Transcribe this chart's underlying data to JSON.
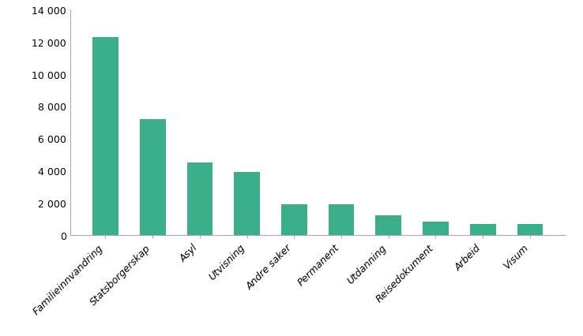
{
  "categories": [
    "Familieinnvandring",
    "Statsborgerskap",
    "Asyl",
    "Utvisning",
    "Andre saker",
    "Permanent",
    "Utdanning",
    "Reisedokument",
    "Arbeid",
    "Visum"
  ],
  "values": [
    12300,
    7200,
    4500,
    3900,
    1900,
    1900,
    1200,
    830,
    690,
    660
  ],
  "bar_color": "#3aad8a",
  "background_color": "#ffffff",
  "ylim": [
    0,
    14000
  ],
  "yticks": [
    0,
    2000,
    4000,
    6000,
    8000,
    10000,
    12000,
    14000
  ],
  "spine_color": "#aaaaaa",
  "tick_fontsize": 9,
  "label_fontsize": 9,
  "bar_width": 0.55
}
